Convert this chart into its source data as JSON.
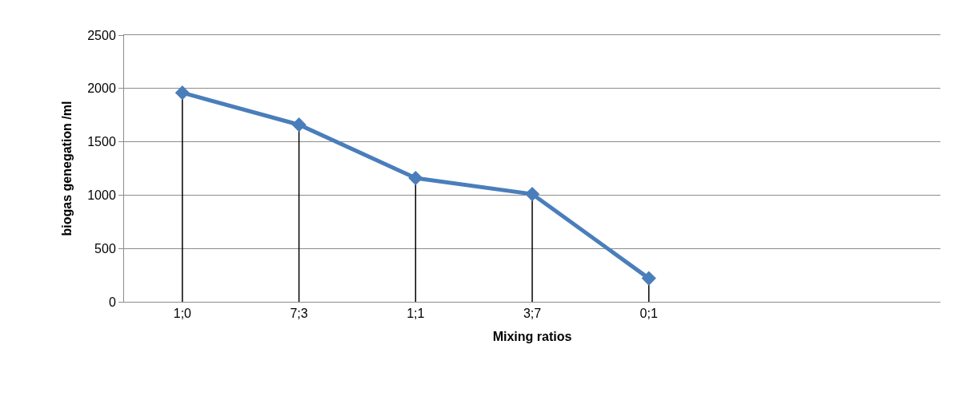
{
  "chart_data": {
    "type": "line",
    "xlabel": "Mixing ratios",
    "ylabel": "biogas genegation /ml",
    "categories": [
      "1;0",
      "7;3",
      "1;1",
      "3;7",
      "0;1",
      null,
      null
    ],
    "series": [
      {
        "color": "#4a7ebb",
        "values": [
          1960,
          1660,
          1160,
          1010,
          220,
          null,
          null
        ],
        "errors": [
          [
            0,
            1960
          ],
          [
            0,
            1660
          ],
          [
            0,
            1160
          ],
          [
            0,
            1010
          ],
          [
            0,
            220
          ],
          null,
          null
        ]
      }
    ],
    "ylim": [
      0,
      2500
    ],
    "yticks": [
      0,
      500,
      1000,
      1500,
      2000,
      2500
    ],
    "grid": "y",
    "marker": "diamond",
    "line_style": "solid"
  }
}
